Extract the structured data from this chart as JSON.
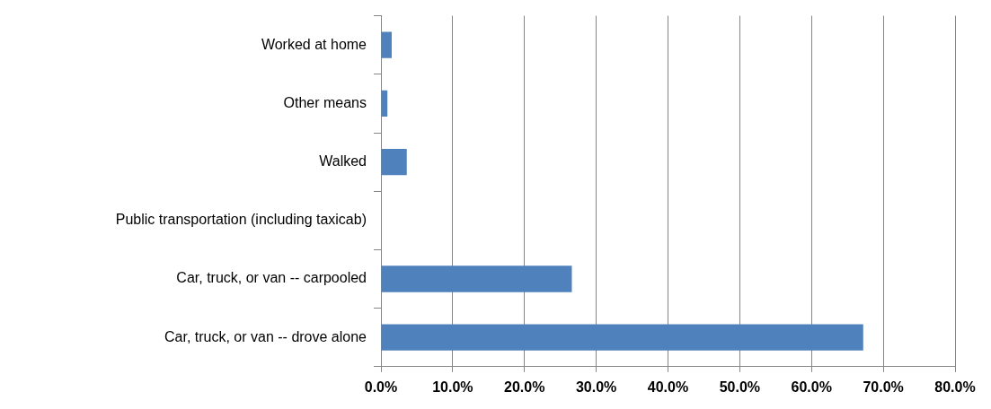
{
  "chart_data": {
    "type": "bar",
    "orientation": "horizontal",
    "categories": [
      "Worked at home",
      "Other means",
      "Walked",
      "Public transportation (including taxicab)",
      "Car, truck, or van -- carpooled",
      "Car, truck, or van -- drove alone"
    ],
    "values": [
      1.5,
      0.9,
      3.6,
      0,
      26.6,
      67.2
    ],
    "color": "#4f81bd",
    "xlim": [
      0,
      80
    ],
    "xticks": [
      {
        "value": 0,
        "label": "0.0%"
      },
      {
        "value": 10,
        "label": "10.0%"
      },
      {
        "value": 20,
        "label": "20.0%"
      },
      {
        "value": 30,
        "label": "30.0%"
      },
      {
        "value": 40,
        "label": "40.0%"
      },
      {
        "value": 50,
        "label": "50.0%"
      },
      {
        "value": 60,
        "label": "60.0%"
      },
      {
        "value": 70,
        "label": "70.0%"
      },
      {
        "value": 80,
        "label": "80.0%"
      }
    ],
    "grid": "x",
    "legend": false
  }
}
